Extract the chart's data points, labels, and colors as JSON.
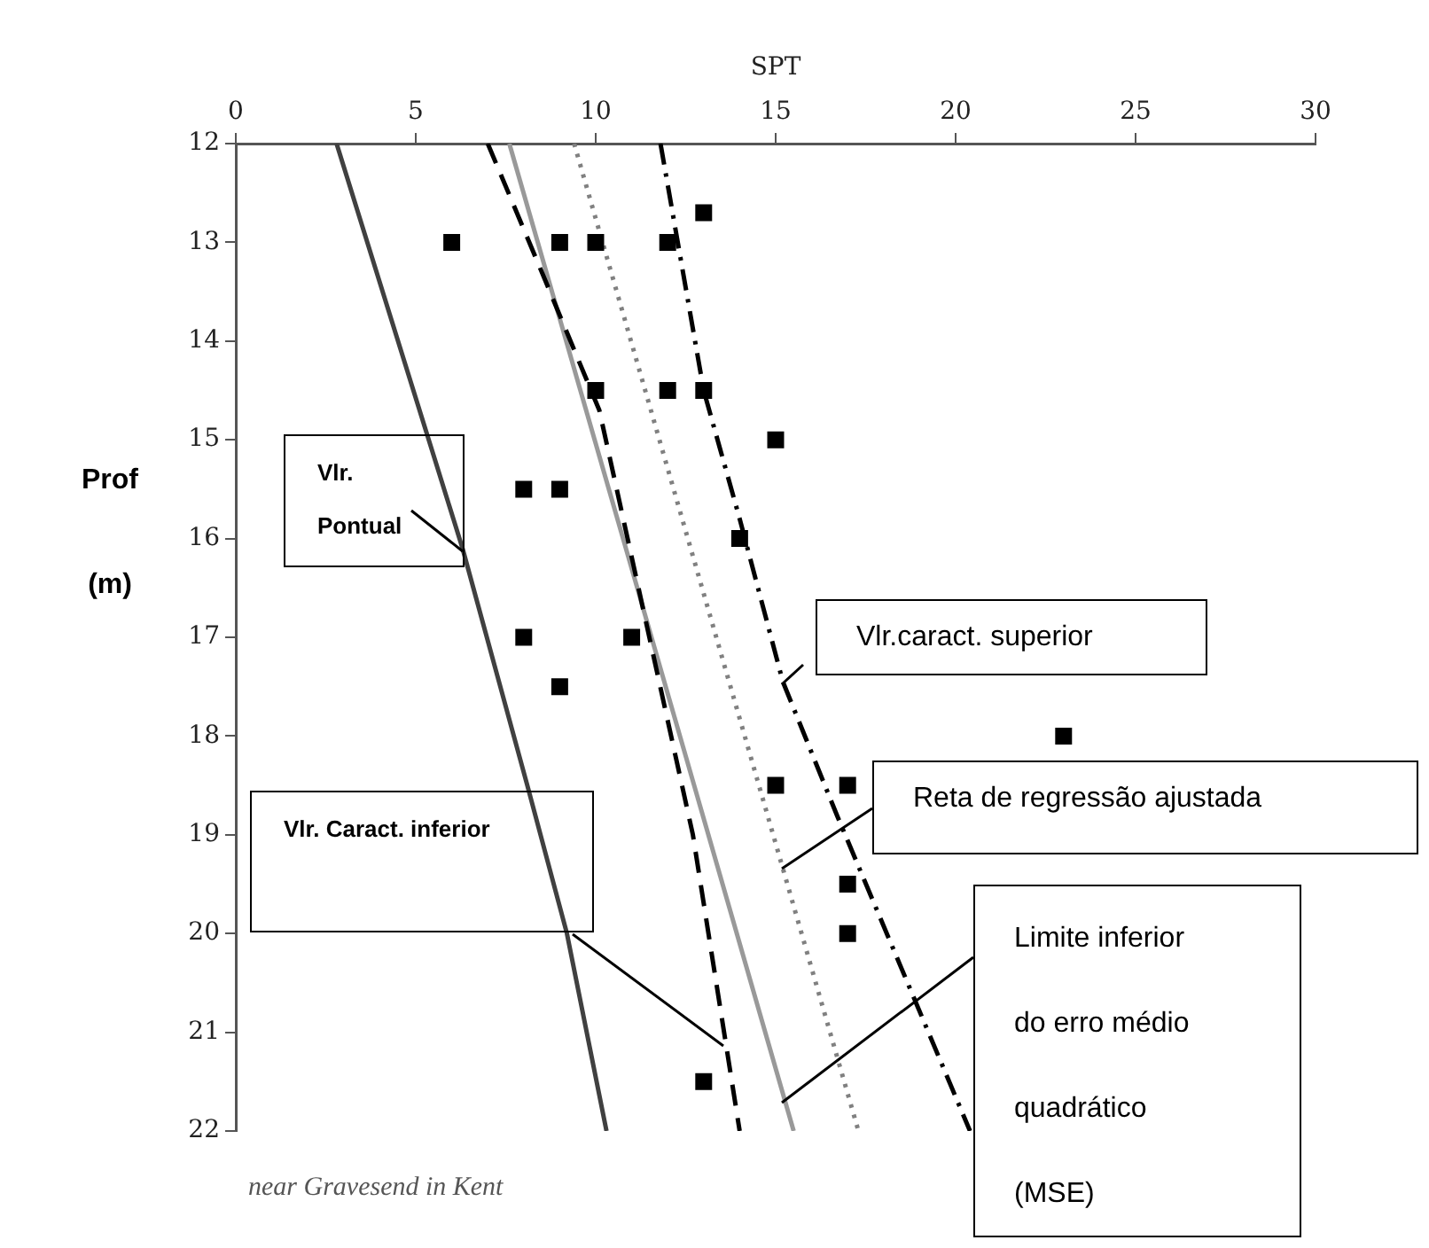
{
  "chart_data": {
    "type": "scatter",
    "xlabel": "SPT",
    "ylabel": "Prof (m)",
    "xlim": [
      0,
      30
    ],
    "xticks": [
      0,
      5,
      10,
      15,
      20,
      25,
      30
    ],
    "ylim": [
      22,
      12
    ],
    "yticks": [
      12,
      13,
      14,
      15,
      16,
      17,
      18,
      19,
      20,
      21,
      22
    ],
    "grid": false,
    "legend": false,
    "marker": "square",
    "series": [
      {
        "color": "#000000",
        "x": [
          13,
          6,
          9,
          10,
          12,
          10,
          12,
          13,
          15,
          8,
          9,
          14,
          8,
          11,
          9,
          23,
          15,
          17,
          17,
          17,
          13
        ],
        "values": [
          12.7,
          13,
          13,
          13,
          13,
          14.5,
          14.5,
          14.5,
          15,
          15.5,
          15.5,
          16,
          17,
          17,
          17.5,
          18,
          18.5,
          18.5,
          19.5,
          20,
          21.5
        ]
      },
      {
        "type": "line",
        "color": "#404040",
        "line_style": "solid",
        "marker": "none",
        "x": [
          2.8,
          6.3,
          8.1,
          9.2,
          10.3
        ],
        "values": [
          12,
          16.1,
          18.5,
          20,
          22
        ]
      },
      {
        "type": "line",
        "color": "#000000",
        "line_style": "dashed",
        "marker": "none",
        "x": [
          7,
          8.5,
          10.1,
          12.7,
          14
        ],
        "values": [
          12,
          13.3,
          14.7,
          19,
          22
        ]
      },
      {
        "type": "line",
        "color": "#999999",
        "line_style": "solid",
        "marker": "none",
        "x": [
          7.6,
          15.5
        ],
        "values": [
          12,
          22
        ]
      },
      {
        "type": "line",
        "color": "#808080",
        "line_style": "dotted",
        "marker": "none",
        "x": [
          9.4,
          17.3
        ],
        "values": [
          12,
          22
        ]
      },
      {
        "type": "line",
        "color": "#000000",
        "line_style": "dashdot",
        "marker": "none",
        "x": [
          11.8,
          13,
          14,
          15.2,
          16.7,
          20.4
        ],
        "values": [
          12,
          14.5,
          15.8,
          17.45,
          18.8,
          22
        ]
      }
    ],
    "annotations": [
      "Vlr. Pontual",
      "Vlr.caract. superior",
      "Reta de regressão ajustada",
      "Vlr. Caract. inferior",
      "Limite inferior do erro médio quadrático (MSE)",
      "near Gravesend in Kent"
    ]
  }
}
